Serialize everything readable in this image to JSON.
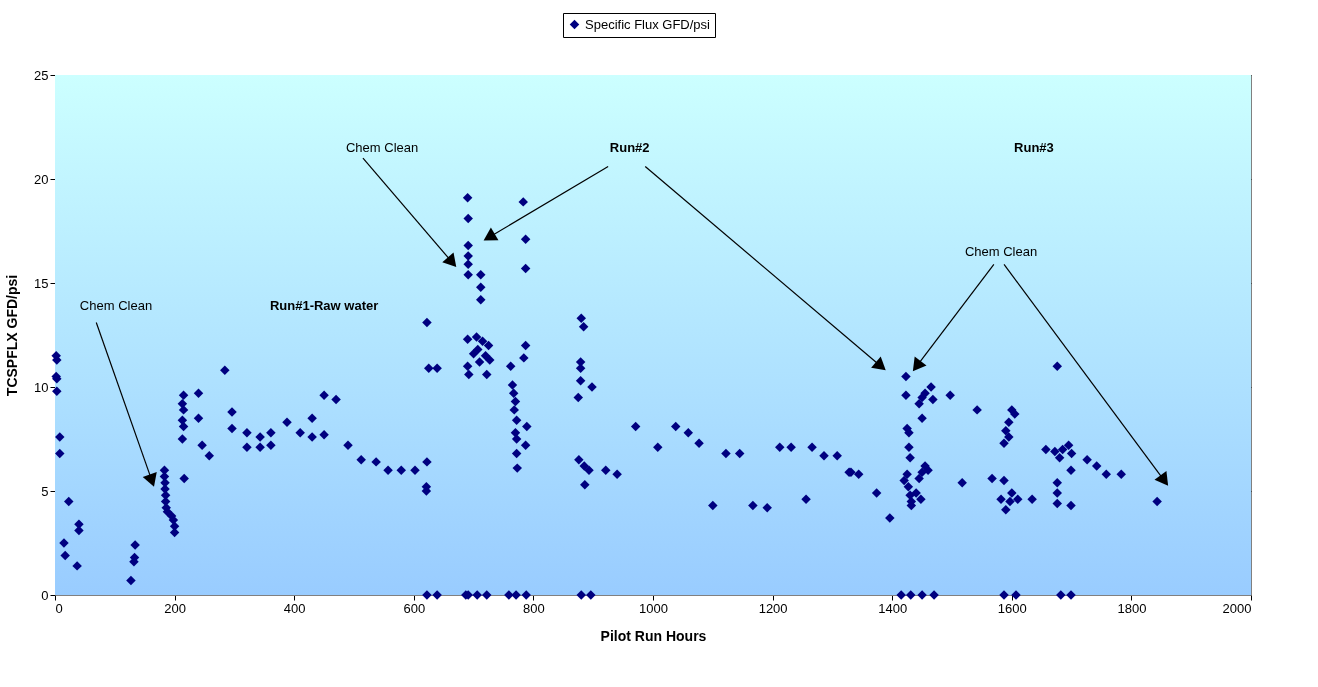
{
  "chart_data": {
    "type": "scatter",
    "xlabel": "Pilot Run Hours",
    "ylabel": "TCSPFLX GFD/psi",
    "xlim": [
      0,
      2000
    ],
    "xticks": [
      0,
      200,
      400,
      600,
      800,
      1000,
      1200,
      1400,
      1600,
      1800,
      2000
    ],
    "ylim": [
      0,
      25
    ],
    "yticks": [
      0,
      5,
      10,
      15,
      20,
      25
    ],
    "grid": "y",
    "legend": "top",
    "marker": "diamond",
    "annotations": [
      "Chem Clean",
      "Run#1-Raw water",
      "Chem Clean",
      "Run#2",
      "Run#3",
      "Chem Clean"
    ],
    "series": [
      {
        "name": "Specific Flux GFD/psi",
        "color": "#000080",
        "x": [
          2,
          3,
          2,
          3,
          3,
          8,
          8,
          23,
          40,
          40,
          15,
          17,
          37,
          127,
          134,
          133,
          132,
          183,
          183,
          184,
          184,
          185,
          185,
          186,
          188,
          195,
          198,
          200,
          200,
          216,
          215,
          213,
          215,
          213,
          215,
          213,
          240,
          240,
          246,
          258,
          284,
          296,
          296,
          321,
          321,
          343,
          343,
          361,
          361,
          388,
          410,
          430,
          430,
          450,
          450,
          470,
          490,
          512,
          537,
          557,
          579,
          602,
          622,
          621,
          621,
          622,
          625,
          639,
          622,
          639,
          687,
          690,
          691,
          691,
          691,
          691,
          691,
          691,
          712,
          712,
          712,
          783,
          787,
          787,
          690,
          690,
          692,
          700,
          705,
          707,
          710,
          715,
          720,
          722,
          725,
          727,
          762,
          784,
          787,
          765,
          767,
          770,
          768,
          772,
          789,
          787,
          770,
          772,
          772,
          773,
          880,
          884,
          879,
          879,
          879,
          875,
          898,
          876,
          885,
          893,
          886,
          921,
          940,
          971,
          1008,
          1038,
          1059,
          1077,
          1100,
          1122,
          1145,
          1167,
          1191,
          1212,
          1231,
          1256,
          1266,
          1286,
          1308,
          1328,
          706,
          722,
          759,
          771,
          788,
          880,
          896,
          1331,
          1344,
          1374,
          1396,
          1423,
          1423,
          1445,
          1450,
          1455,
          1465,
          1468,
          1497,
          1450,
          1425,
          1428,
          1428,
          1430,
          1420,
          1425,
          1427,
          1430,
          1432,
          1440,
          1445,
          1450,
          1455,
          1460,
          1432,
          1448,
          1517,
          1542,
          1567,
          1587,
          1600,
          1605,
          1595,
          1590,
          1595,
          1587,
          1582,
          1590,
          1600,
          1610,
          1634,
          1597,
          1657,
          1676,
          1672,
          1680,
          1685,
          1695,
          1700,
          1699,
          1676,
          1676,
          1676,
          1699,
          1726,
          1742,
          1758,
          1783,
          1843,
          1415,
          1431,
          1450,
          1470,
          1587,
          1607,
          1682,
          1699
        ],
        "values": [
          11.5,
          11.3,
          10.5,
          10.4,
          9.8,
          7.6,
          6.8,
          4.5,
          3.4,
          3.1,
          2.5,
          1.9,
          1.4,
          0.7,
          2.4,
          1.8,
          1.6,
          6.0,
          5.7,
          5.4,
          5.1,
          4.8,
          4.5,
          4.2,
          4.0,
          3.8,
          3.6,
          3.3,
          3.0,
          5.6,
          9.6,
          9.2,
          8.9,
          8.4,
          8.1,
          7.5,
          9.7,
          8.5,
          7.2,
          6.7,
          10.8,
          8.8,
          8.0,
          7.8,
          7.1,
          7.6,
          7.1,
          7.8,
          7.2,
          8.3,
          7.8,
          8.5,
          7.6,
          7.7,
          9.6,
          9.4,
          7.2,
          6.5,
          6.4,
          6.0,
          6.0,
          6.0,
          6.4,
          5.2,
          5.0,
          13.1,
          10.9,
          10.9,
          0,
          0,
          0,
          19.1,
          18.1,
          16.8,
          16.3,
          15.9,
          15.4,
          0,
          15.4,
          14.8,
          14.2,
          18.9,
          17.1,
          15.7,
          12.3,
          11.0,
          10.6,
          11.6,
          12.4,
          11.8,
          11.2,
          12.2,
          11.5,
          10.6,
          12.0,
          11.3,
          11.0,
          11.4,
          12.0,
          10.1,
          9.7,
          9.3,
          8.9,
          8.4,
          8.1,
          7.2,
          7.8,
          7.5,
          6.8,
          6.1,
          13.3,
          12.9,
          11.2,
          10.9,
          10.3,
          9.5,
          10.0,
          6.5,
          6.2,
          6.0,
          5.3,
          6.0,
          5.8,
          8.1,
          7.1,
          8.1,
          7.8,
          7.3,
          4.3,
          6.8,
          6.8,
          4.3,
          4.2,
          7.1,
          7.1,
          4.6,
          7.1,
          6.7,
          6.7,
          5.9,
          0,
          0,
          0,
          0,
          0,
          0,
          0,
          5.9,
          5.8,
          4.9,
          3.7,
          10.5,
          9.6,
          9.2,
          9.5,
          9.7,
          10.0,
          9.4,
          9.6,
          8.5,
          8.0,
          7.8,
          7.1,
          6.6,
          5.5,
          5.8,
          5.2,
          4.8,
          4.5,
          4.9,
          5.6,
          5.9,
          6.2,
          6.0,
          4.3,
          4.6,
          5.4,
          8.9,
          5.6,
          5.5,
          8.9,
          8.7,
          8.3,
          7.9,
          7.6,
          7.3,
          4.6,
          4.1,
          4.9,
          4.6,
          4.6,
          4.5,
          7.0,
          11.0,
          6.9,
          6.6,
          7.0,
          7.2,
          6.8,
          6.0,
          5.4,
          4.9,
          4.4,
          4.3,
          6.5,
          6.2,
          5.8,
          5.8,
          4.5,
          0,
          0,
          0,
          0,
          0,
          0,
          0,
          0
        ]
      }
    ]
  }
}
